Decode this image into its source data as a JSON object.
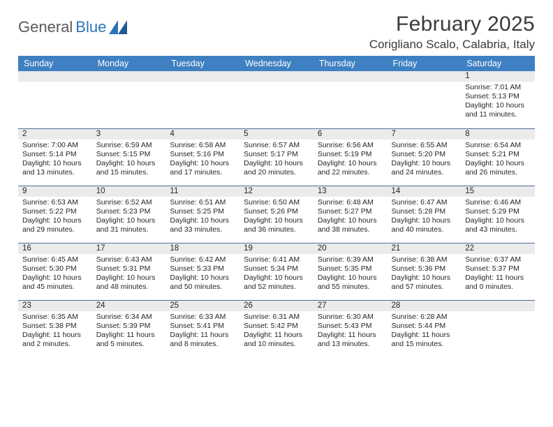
{
  "brand": {
    "general": "General",
    "blue": "Blue"
  },
  "title": "February 2025",
  "location": "Corigliano Scalo, Calabria, Italy",
  "colors": {
    "header_bg": "#3e80c1",
    "header_text": "#ffffff",
    "daynum_bg": "#ebebeb",
    "rule": "#4a6e9a",
    "brand_blue": "#2e74b5",
    "brand_gray": "#5a5a5a"
  },
  "weekdays": [
    "Sunday",
    "Monday",
    "Tuesday",
    "Wednesday",
    "Thursday",
    "Friday",
    "Saturday"
  ],
  "weeks": [
    [
      null,
      null,
      null,
      null,
      null,
      null,
      {
        "n": "1",
        "sr": "7:01 AM",
        "ss": "5:13 PM",
        "dl": "10 hours and 11 minutes."
      }
    ],
    [
      {
        "n": "2",
        "sr": "7:00 AM",
        "ss": "5:14 PM",
        "dl": "10 hours and 13 minutes."
      },
      {
        "n": "3",
        "sr": "6:59 AM",
        "ss": "5:15 PM",
        "dl": "10 hours and 15 minutes."
      },
      {
        "n": "4",
        "sr": "6:58 AM",
        "ss": "5:16 PM",
        "dl": "10 hours and 17 minutes."
      },
      {
        "n": "5",
        "sr": "6:57 AM",
        "ss": "5:17 PM",
        "dl": "10 hours and 20 minutes."
      },
      {
        "n": "6",
        "sr": "6:56 AM",
        "ss": "5:19 PM",
        "dl": "10 hours and 22 minutes."
      },
      {
        "n": "7",
        "sr": "6:55 AM",
        "ss": "5:20 PM",
        "dl": "10 hours and 24 minutes."
      },
      {
        "n": "8",
        "sr": "6:54 AM",
        "ss": "5:21 PM",
        "dl": "10 hours and 26 minutes."
      }
    ],
    [
      {
        "n": "9",
        "sr": "6:53 AM",
        "ss": "5:22 PM",
        "dl": "10 hours and 29 minutes."
      },
      {
        "n": "10",
        "sr": "6:52 AM",
        "ss": "5:23 PM",
        "dl": "10 hours and 31 minutes."
      },
      {
        "n": "11",
        "sr": "6:51 AM",
        "ss": "5:25 PM",
        "dl": "10 hours and 33 minutes."
      },
      {
        "n": "12",
        "sr": "6:50 AM",
        "ss": "5:26 PM",
        "dl": "10 hours and 36 minutes."
      },
      {
        "n": "13",
        "sr": "6:48 AM",
        "ss": "5:27 PM",
        "dl": "10 hours and 38 minutes."
      },
      {
        "n": "14",
        "sr": "6:47 AM",
        "ss": "5:28 PM",
        "dl": "10 hours and 40 minutes."
      },
      {
        "n": "15",
        "sr": "6:46 AM",
        "ss": "5:29 PM",
        "dl": "10 hours and 43 minutes."
      }
    ],
    [
      {
        "n": "16",
        "sr": "6:45 AM",
        "ss": "5:30 PM",
        "dl": "10 hours and 45 minutes."
      },
      {
        "n": "17",
        "sr": "6:43 AM",
        "ss": "5:31 PM",
        "dl": "10 hours and 48 minutes."
      },
      {
        "n": "18",
        "sr": "6:42 AM",
        "ss": "5:33 PM",
        "dl": "10 hours and 50 minutes."
      },
      {
        "n": "19",
        "sr": "6:41 AM",
        "ss": "5:34 PM",
        "dl": "10 hours and 52 minutes."
      },
      {
        "n": "20",
        "sr": "6:39 AM",
        "ss": "5:35 PM",
        "dl": "10 hours and 55 minutes."
      },
      {
        "n": "21",
        "sr": "6:38 AM",
        "ss": "5:36 PM",
        "dl": "10 hours and 57 minutes."
      },
      {
        "n": "22",
        "sr": "6:37 AM",
        "ss": "5:37 PM",
        "dl": "11 hours and 0 minutes."
      }
    ],
    [
      {
        "n": "23",
        "sr": "6:35 AM",
        "ss": "5:38 PM",
        "dl": "11 hours and 2 minutes."
      },
      {
        "n": "24",
        "sr": "6:34 AM",
        "ss": "5:39 PM",
        "dl": "11 hours and 5 minutes."
      },
      {
        "n": "25",
        "sr": "6:33 AM",
        "ss": "5:41 PM",
        "dl": "11 hours and 8 minutes."
      },
      {
        "n": "26",
        "sr": "6:31 AM",
        "ss": "5:42 PM",
        "dl": "11 hours and 10 minutes."
      },
      {
        "n": "27",
        "sr": "6:30 AM",
        "ss": "5:43 PM",
        "dl": "11 hours and 13 minutes."
      },
      {
        "n": "28",
        "sr": "6:28 AM",
        "ss": "5:44 PM",
        "dl": "11 hours and 15 minutes."
      },
      null
    ]
  ],
  "labels": {
    "sunrise": "Sunrise: ",
    "sunset": "Sunset: ",
    "daylight": "Daylight: "
  }
}
